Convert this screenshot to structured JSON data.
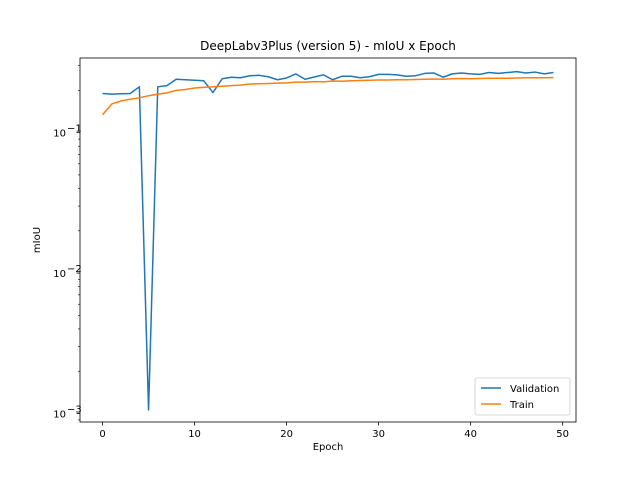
{
  "chart_data": {
    "type": "line",
    "title": "DeepLabv3Plus (version 5) - mIoU x Epoch",
    "xlabel": "Epoch",
    "ylabel": "mIoU",
    "xlim": [
      -2.45,
      51.45
    ],
    "ylim": [
      0.00087,
      0.34
    ],
    "yscale": "log",
    "x_ticks": [
      0,
      10,
      20,
      30,
      40,
      50
    ],
    "y_ticks": [
      {
        "value": 0.001,
        "base": "10",
        "exp": "−3"
      },
      {
        "value": 0.01,
        "base": "10",
        "exp": "−2"
      },
      {
        "value": 0.1,
        "base": "10",
        "exp": "−1"
      }
    ],
    "grid": false,
    "legend": "lower-right",
    "series": [
      {
        "name": "Validation",
        "color": "#1f77b4",
        "x": [
          0,
          1,
          2,
          3,
          4,
          5,
          6,
          7,
          8,
          9,
          10,
          11,
          12,
          13,
          14,
          15,
          16,
          17,
          18,
          19,
          20,
          21,
          22,
          23,
          24,
          25,
          26,
          27,
          28,
          29,
          30,
          31,
          32,
          33,
          34,
          35,
          36,
          37,
          38,
          39,
          40,
          41,
          42,
          43,
          44,
          45,
          46,
          47,
          48,
          49
        ],
        "values": [
          0.19,
          0.188,
          0.189,
          0.19,
          0.212,
          0.00106,
          0.212,
          0.216,
          0.24,
          0.238,
          0.236,
          0.234,
          0.193,
          0.242,
          0.248,
          0.246,
          0.254,
          0.256,
          0.25,
          0.238,
          0.245,
          0.262,
          0.24,
          0.249,
          0.258,
          0.238,
          0.252,
          0.252,
          0.246,
          0.25,
          0.26,
          0.26,
          0.258,
          0.252,
          0.254,
          0.264,
          0.266,
          0.248,
          0.262,
          0.266,
          0.262,
          0.26,
          0.268,
          0.264,
          0.268,
          0.272,
          0.266,
          0.27,
          0.262,
          0.268
        ]
      },
      {
        "name": "Train",
        "color": "#ff7f0e",
        "x": [
          0,
          1,
          2,
          3,
          4,
          5,
          6,
          7,
          8,
          9,
          10,
          11,
          12,
          13,
          14,
          15,
          16,
          17,
          18,
          19,
          20,
          21,
          22,
          23,
          24,
          25,
          26,
          27,
          28,
          29,
          30,
          31,
          32,
          33,
          34,
          35,
          36,
          37,
          38,
          39,
          40,
          41,
          42,
          43,
          44,
          45,
          46,
          47,
          48,
          49
        ],
        "values": [
          0.134,
          0.16,
          0.168,
          0.173,
          0.177,
          0.183,
          0.188,
          0.192,
          0.2,
          0.203,
          0.208,
          0.21,
          0.212,
          0.214,
          0.216,
          0.218,
          0.222,
          0.223,
          0.224,
          0.225,
          0.226,
          0.229,
          0.229,
          0.231,
          0.23,
          0.233,
          0.232,
          0.234,
          0.235,
          0.236,
          0.237,
          0.237,
          0.238,
          0.238,
          0.239,
          0.24,
          0.241,
          0.24,
          0.242,
          0.243,
          0.242,
          0.243,
          0.244,
          0.244,
          0.244,
          0.245,
          0.246,
          0.246,
          0.246,
          0.247
        ]
      }
    ]
  }
}
